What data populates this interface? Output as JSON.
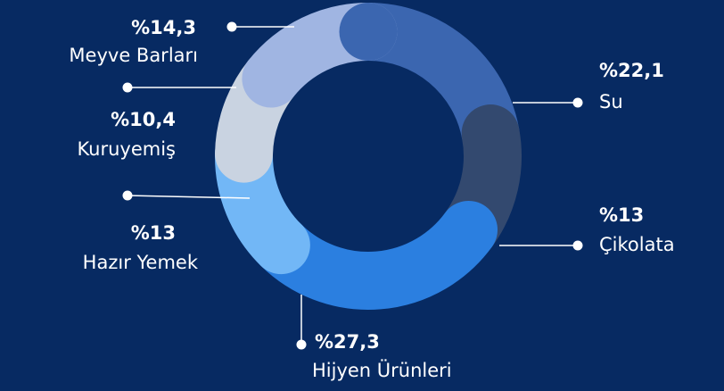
{
  "chart_data": {
    "type": "donut",
    "categories": [
      "Su",
      "Çikolata",
      "Hijyen Ürünleri",
      "Hazır Yemek",
      "Kuruyemiş",
      "Meyve Barları"
    ],
    "values": [
      22.1,
      13,
      27.3,
      13,
      10.4,
      14.3
    ],
    "value_labels": [
      "%22,1",
      "%13",
      "%27,3",
      "%13",
      "%10,4",
      "%14,3"
    ],
    "colors": [
      "#3b66b0",
      "#33496f",
      "#2b7fe0",
      "#72b7f6",
      "#c9d3e1",
      "#a0b5e2"
    ]
  }
}
